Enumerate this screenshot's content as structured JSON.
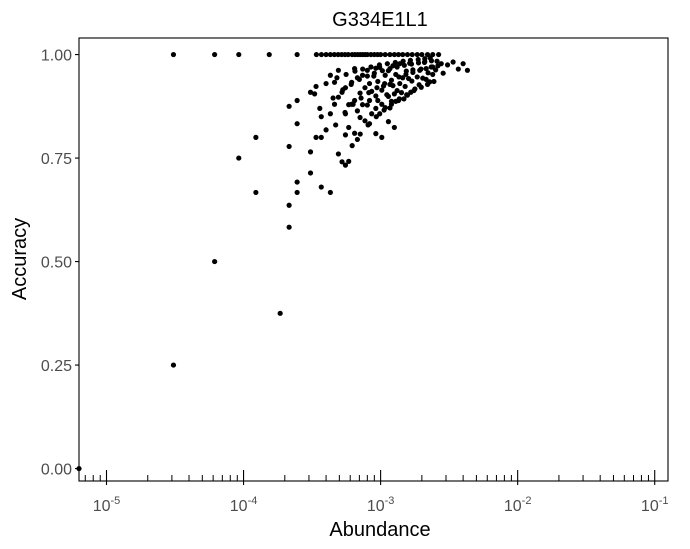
{
  "chart_data": {
    "type": "scatter",
    "title": "G334E1L1",
    "xlabel": "Abundance",
    "ylabel": "Accuracy",
    "x_scale": "log10",
    "xlim": [
      6.3e-06,
      0.125
    ],
    "ylim": [
      -0.03,
      1.04
    ],
    "x_ticks": [
      {
        "value": 1e-05,
        "base": "10",
        "exp": "-5"
      },
      {
        "value": 0.0001,
        "base": "10",
        "exp": "-4"
      },
      {
        "value": 0.001,
        "base": "10",
        "exp": "-3"
      },
      {
        "value": 0.01,
        "base": "10",
        "exp": "-2"
      },
      {
        "value": 0.1,
        "base": "10",
        "exp": "-1"
      }
    ],
    "y_ticks": [
      {
        "value": 0.0,
        "label": "0.00"
      },
      {
        "value": 0.25,
        "label": "0.25"
      },
      {
        "value": 0.5,
        "label": "0.50"
      },
      {
        "value": 0.75,
        "label": "0.75"
      },
      {
        "value": 1.0,
        "label": "1.00"
      }
    ],
    "grid": false,
    "points": [
      [
        6.3e-06,
        0.0
      ],
      [
        3.08e-05,
        0.25
      ],
      [
        3.08e-05,
        1.0
      ],
      [
        6.15e-05,
        0.5
      ],
      [
        6.15e-05,
        1.0
      ],
      [
        9.23e-05,
        0.75
      ],
      [
        9.23e-05,
        1.0
      ],
      [
        0.000123,
        0.667
      ],
      [
        0.000123,
        0.8
      ],
      [
        0.000154,
        1.0
      ],
      [
        0.000185,
        0.375
      ],
      [
        0.000215,
        0.583
      ],
      [
        0.000215,
        0.636
      ],
      [
        0.000215,
        0.778
      ],
      [
        0.000215,
        0.875
      ],
      [
        0.000246,
        0.667
      ],
      [
        0.000246,
        0.692
      ],
      [
        0.000246,
        0.833
      ],
      [
        0.000246,
        0.889
      ],
      [
        0.000246,
        1.0
      ],
      [
        0.000308,
        0.714
      ],
      [
        0.000308,
        0.765
      ],
      [
        0.000308,
        0.909
      ],
      [
        0.000338,
        0.8
      ],
      [
        0.000338,
        0.923
      ],
      [
        0.000369,
        0.68
      ],
      [
        0.000369,
        0.8
      ],
      [
        0.000369,
        0.85
      ],
      [
        0.0004,
        0.818
      ],
      [
        0.00043,
        0.667
      ],
      [
        0.00043,
        0.857
      ],
      [
        0.00043,
        0.95
      ],
      [
        0.000461,
        0.88
      ],
      [
        0.000461,
        0.933
      ],
      [
        0.000492,
        0.76
      ],
      [
        0.000492,
        0.897
      ],
      [
        0.000492,
        0.962
      ],
      [
        0.000523,
        0.741
      ],
      [
        0.000523,
        0.909
      ],
      [
        0.000554,
        0.733
      ],
      [
        0.000554,
        0.806
      ],
      [
        0.000554,
        0.857
      ],
      [
        0.000554,
        0.92
      ],
      [
        0.000585,
        0.742
      ],
      [
        0.000585,
        0.824
      ],
      [
        0.000585,
        0.879
      ],
      [
        0.000615,
        0.88
      ],
      [
        0.000615,
        0.933
      ],
      [
        0.000646,
        0.81
      ],
      [
        0.000646,
        0.889
      ],
      [
        0.000646,
        0.966
      ],
      [
        0.000677,
        0.795
      ],
      [
        0.000677,
        0.864
      ],
      [
        0.000677,
        0.944
      ],
      [
        0.000708,
        0.848
      ],
      [
        0.000708,
        0.907
      ],
      [
        0.000738,
        0.879
      ],
      [
        0.000738,
        0.95
      ],
      [
        0.000769,
        0.84
      ],
      [
        0.000769,
        0.92
      ],
      [
        0.0008,
        0.878
      ],
      [
        0.0008,
        0.962
      ],
      [
        0.00083,
        0.833
      ],
      [
        0.00083,
        0.889
      ],
      [
        0.00083,
        0.93
      ],
      [
        0.000861,
        0.857
      ],
      [
        0.000861,
        0.911
      ],
      [
        0.000892,
        0.948
      ],
      [
        0.000923,
        0.809
      ],
      [
        0.000923,
        0.87
      ],
      [
        0.000923,
        0.9
      ],
      [
        0.000923,
        0.967
      ],
      [
        0.000954,
        0.889
      ],
      [
        0.000954,
        0.935
      ],
      [
        0.000985,
        0.857
      ],
      [
        0.000985,
        0.969
      ],
      [
        0.00102,
        0.8
      ],
      [
        0.00102,
        0.88
      ],
      [
        0.00102,
        0.914
      ],
      [
        0.00105,
        0.924
      ],
      [
        0.00108,
        0.872
      ],
      [
        0.00108,
        0.95
      ],
      [
        0.00111,
        0.903
      ],
      [
        0.00114,
        0.838
      ],
      [
        0.00114,
        0.899
      ],
      [
        0.00114,
        0.961
      ],
      [
        0.00117,
        0.871
      ],
      [
        0.00117,
        0.928
      ],
      [
        0.0012,
        0.887
      ],
      [
        0.00123,
        0.925
      ],
      [
        0.00123,
        0.973
      ],
      [
        0.00126,
        0.824
      ],
      [
        0.00126,
        0.905
      ],
      [
        0.00129,
        0.887
      ],
      [
        0.00129,
        0.952
      ],
      [
        0.00132,
        0.913
      ],
      [
        0.00135,
        0.889
      ],
      [
        0.00138,
        0.93
      ],
      [
        0.00138,
        0.978
      ],
      [
        0.00142,
        0.908
      ],
      [
        0.00145,
        0.944
      ],
      [
        0.00148,
        0.893
      ],
      [
        0.00151,
        0.923
      ],
      [
        0.00154,
        0.96
      ],
      [
        0.00157,
        0.902
      ],
      [
        0.0016,
        0.942
      ],
      [
        0.00163,
        0.979
      ],
      [
        0.00166,
        0.909
      ],
      [
        0.00169,
        0.936
      ],
      [
        0.00172,
        0.963
      ],
      [
        0.00178,
        0.917
      ],
      [
        0.00185,
        0.946
      ],
      [
        0.00191,
        0.927
      ],
      [
        0.00197,
        0.965
      ],
      [
        0.00203,
        0.943
      ],
      [
        0.00209,
        0.981
      ],
      [
        0.00215,
        0.94
      ],
      [
        0.00222,
        0.956
      ],
      [
        0.00228,
        0.934
      ],
      [
        0.00234,
        0.97
      ],
      [
        0.0024,
        0.952
      ],
      [
        0.00252,
        0.963
      ],
      [
        0.00258,
        0.984
      ],
      [
        0.00277,
        0.978
      ],
      [
        0.00286,
        0.955
      ],
      [
        0.00308,
        0.975
      ],
      [
        0.00338,
        0.982
      ],
      [
        0.00369,
        0.965
      ],
      [
        0.004,
        0.978
      ],
      [
        0.0043,
        0.962
      ],
      [
        0.00034,
        1.0
      ],
      [
        0.00037,
        1.0
      ],
      [
        0.0004,
        1.0
      ],
      [
        0.00043,
        1.0
      ],
      [
        0.00046,
        1.0
      ],
      [
        0.00049,
        1.0
      ],
      [
        0.00052,
        1.0
      ],
      [
        0.00055,
        1.0
      ],
      [
        0.00058,
        1.0
      ],
      [
        0.00062,
        1.0
      ],
      [
        0.00065,
        1.0
      ],
      [
        0.00068,
        1.0
      ],
      [
        0.00071,
        1.0
      ],
      [
        0.00074,
        1.0
      ],
      [
        0.00077,
        1.0
      ],
      [
        0.0008,
        1.0
      ],
      [
        0.00085,
        1.0
      ],
      [
        0.0009,
        1.0
      ],
      [
        0.00095,
        1.0
      ],
      [
        0.001,
        1.0
      ],
      [
        0.00108,
        1.0
      ],
      [
        0.00117,
        1.0
      ],
      [
        0.00126,
        1.0
      ],
      [
        0.00135,
        1.0
      ],
      [
        0.00145,
        1.0
      ],
      [
        0.00157,
        1.0
      ],
      [
        0.0017,
        1.0
      ],
      [
        0.00185,
        1.0
      ],
      [
        0.002,
        1.0
      ],
      [
        0.0022,
        1.0
      ],
      [
        0.0024,
        1.0
      ],
      [
        0.00265,
        1.0
      ],
      [
        0.00033,
        0.905
      ],
      [
        0.0004,
        0.93
      ],
      [
        0.00048,
        0.944
      ],
      [
        0.00056,
        0.952
      ],
      [
        0.00065,
        0.96
      ],
      [
        0.00074,
        0.965
      ],
      [
        0.00085,
        0.97
      ],
      [
        0.00098,
        0.975
      ],
      [
        0.00112,
        0.978
      ],
      [
        0.00128,
        0.981
      ],
      [
        0.00146,
        0.984
      ],
      [
        0.00165,
        0.986
      ],
      [
        0.00188,
        0.988
      ],
      [
        0.0021,
        0.99
      ],
      [
        0.0023,
        0.992
      ],
      [
        0.00047,
        0.83
      ],
      [
        0.00055,
        0.86
      ],
      [
        0.00063,
        0.88
      ],
      [
        0.00072,
        0.895
      ],
      [
        0.00082,
        0.908
      ],
      [
        0.00094,
        0.92
      ],
      [
        0.00107,
        0.93
      ],
      [
        0.0012,
        0.938
      ],
      [
        0.00136,
        0.946
      ],
      [
        0.00153,
        0.952
      ],
      [
        0.00172,
        0.957
      ],
      [
        0.00193,
        0.962
      ],
      [
        0.00215,
        0.966
      ],
      [
        0.0024,
        0.97
      ],
      [
        0.00262,
        0.973
      ],
      [
        0.00036,
        0.87
      ],
      [
        0.00045,
        0.895
      ],
      [
        0.00053,
        0.915
      ],
      [
        0.00061,
        0.928
      ],
      [
        0.0007,
        0.94
      ],
      [
        0.0008,
        0.948
      ],
      [
        0.0009,
        0.955
      ],
      [
        0.00103,
        0.961
      ],
      [
        0.00117,
        0.966
      ],
      [
        0.00132,
        0.97
      ],
      [
        0.00149,
        0.974
      ],
      [
        0.00168,
        0.977
      ],
      [
        0.00189,
        0.98
      ],
      [
        0.0021,
        0.983
      ],
      [
        0.00235,
        0.985
      ],
      [
        0.00062,
        0.78
      ],
      [
        0.00071,
        0.808
      ],
      [
        0.00081,
        0.83
      ],
      [
        0.00093,
        0.85
      ],
      [
        0.00106,
        0.866
      ],
      [
        0.0012,
        0.88
      ],
      [
        0.00137,
        0.893
      ],
      [
        0.00155,
        0.903
      ],
      [
        0.00175,
        0.913
      ],
      [
        0.00198,
        0.921
      ],
      [
        0.0022,
        0.928
      ],
      [
        0.00245,
        0.935
      ]
    ]
  }
}
